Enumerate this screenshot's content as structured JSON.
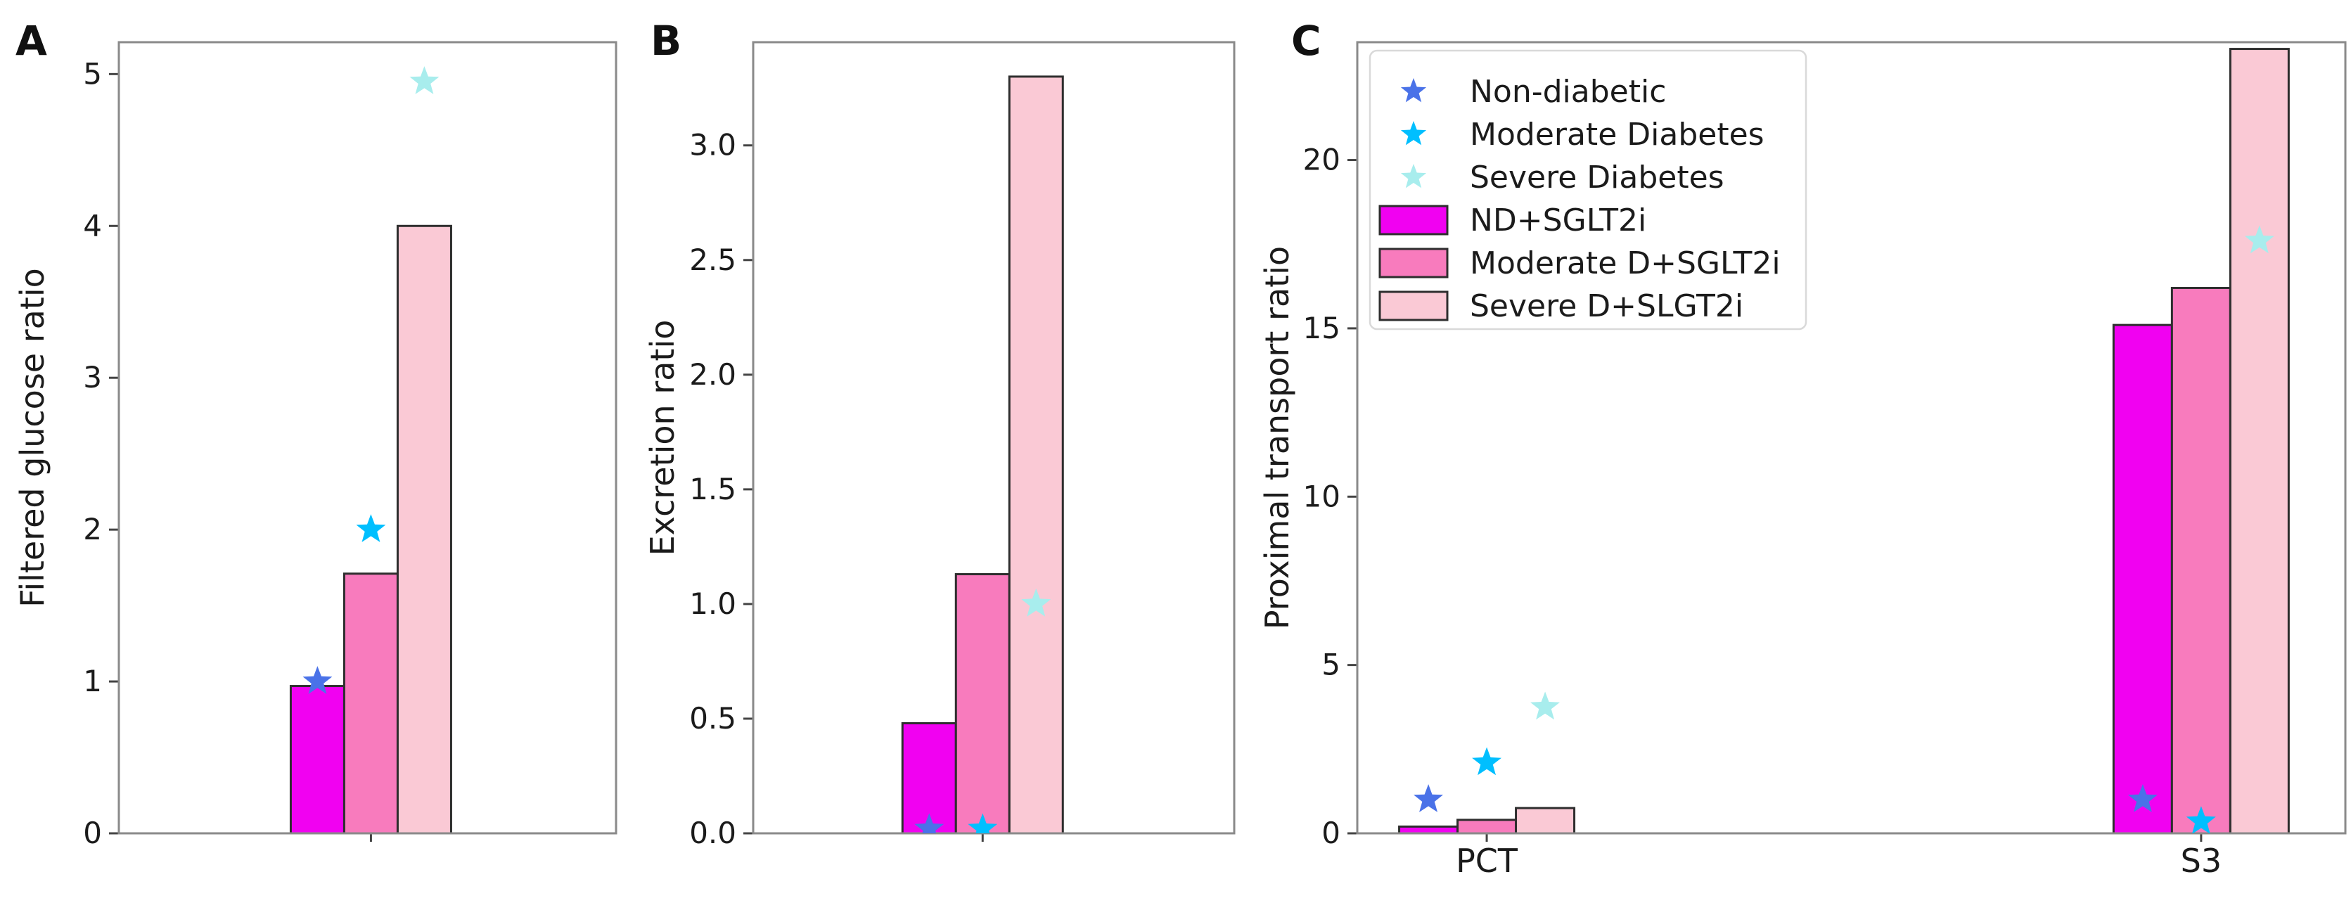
{
  "figure": {
    "background": "#ffffff",
    "colors": {
      "axis": "#8a8a8a",
      "tick": "#444444",
      "text": "#1b1b1b",
      "panel_letter": "#111111",
      "bar_edge": "#2e2e2e",
      "legend_border": "#d9d9d9",
      "legend_bg": "#ffffff"
    }
  },
  "chart_data": [
    {
      "type": "bar",
      "panel_label": "A",
      "title": "",
      "xlabel": "",
      "ylabel": "Filtered glucose ratio",
      "categories": [
        ""
      ],
      "ylim": [
        0,
        5.21
      ],
      "yticks": [
        0,
        1,
        2,
        3,
        4,
        5
      ],
      "ytick_labels": [
        "0",
        "1",
        "2",
        "3",
        "4",
        "5"
      ],
      "grid": false,
      "legend_position": "none",
      "series": [
        {
          "name": "ND+SGLT2i",
          "color": "#f101f1",
          "values": [
            0.97
          ]
        },
        {
          "name": "Moderate D+SGLT2i",
          "color": "#f87bbd",
          "values": [
            1.71
          ]
        },
        {
          "name": "Severe D+SLGT2i",
          "color": "#fac9d5",
          "values": [
            4.0
          ]
        }
      ],
      "points": [
        {
          "name": "Non-diabetic",
          "marker": "star",
          "color": "#4a72e8",
          "values": [
            1.0
          ]
        },
        {
          "name": "Moderate Diabetes",
          "marker": "star",
          "color": "#00bfff",
          "values": [
            2.0
          ]
        },
        {
          "name": "Severe Diabetes",
          "marker": "star",
          "color": "#a8eded",
          "values": [
            4.95
          ]
        }
      ]
    },
    {
      "type": "bar",
      "panel_label": "B",
      "title": "",
      "xlabel": "",
      "ylabel": "Excretion ratio",
      "categories": [
        ""
      ],
      "ylim": [
        0,
        3.45
      ],
      "yticks": [
        0.0,
        0.5,
        1.0,
        1.5,
        2.0,
        2.5,
        3.0
      ],
      "ytick_labels": [
        "0.0",
        "0.5",
        "1.0",
        "1.5",
        "2.0",
        "2.5",
        "3.0"
      ],
      "grid": false,
      "legend_position": "none",
      "series": [
        {
          "name": "ND+SGLT2i",
          "color": "#f101f1",
          "values": [
            0.48
          ]
        },
        {
          "name": "Moderate D+SGLT2i",
          "color": "#f87bbd",
          "values": [
            1.13
          ]
        },
        {
          "name": "Severe D+SLGT2i",
          "color": "#fac9d5",
          "values": [
            3.3
          ]
        }
      ],
      "points": [
        {
          "name": "Non-diabetic",
          "marker": "star",
          "color": "#4a72e8",
          "values": [
            0.02
          ]
        },
        {
          "name": "Moderate Diabetes",
          "marker": "star",
          "color": "#00bfff",
          "values": [
            0.02
          ]
        },
        {
          "name": "Severe Diabetes",
          "marker": "star",
          "color": "#a8eded",
          "values": [
            1.0
          ]
        }
      ]
    },
    {
      "type": "bar",
      "panel_label": "C",
      "title": "",
      "xlabel": "",
      "ylabel": "Proximal transport ratio",
      "categories": [
        "PCT",
        "S3"
      ],
      "ylim": [
        0,
        23.5
      ],
      "yticks": [
        0,
        5,
        10,
        15,
        20
      ],
      "ytick_labels": [
        "0",
        "5",
        "10",
        "15",
        "20"
      ],
      "grid": false,
      "legend_position": "upper-left",
      "series": [
        {
          "name": "ND+SGLT2i",
          "color": "#f101f1",
          "values": [
            0.2,
            15.1
          ]
        },
        {
          "name": "Moderate D+SGLT2i",
          "color": "#f87bbd",
          "values": [
            0.4,
            16.2
          ]
        },
        {
          "name": "Severe D+SLGT2i",
          "color": "#fac9d5",
          "values": [
            0.75,
            23.3
          ]
        }
      ],
      "points": [
        {
          "name": "Non-diabetic",
          "marker": "star",
          "color": "#4a72e8",
          "values": [
            1.0,
            1.0
          ]
        },
        {
          "name": "Moderate Diabetes",
          "marker": "star",
          "color": "#00bfff",
          "values": [
            2.1,
            0.35
          ]
        },
        {
          "name": "Severe Diabetes",
          "marker": "star",
          "color": "#a8eded",
          "values": [
            3.75,
            17.6
          ]
        }
      ],
      "legend": {
        "entries": [
          {
            "type": "star",
            "color": "#4a72e8",
            "label": "Non-diabetic"
          },
          {
            "type": "star",
            "color": "#00bfff",
            "label": "Moderate Diabetes"
          },
          {
            "type": "star",
            "color": "#a8eded",
            "label": "Severe Diabetes"
          },
          {
            "type": "bar",
            "color": "#f101f1",
            "label": "ND+SGLT2i"
          },
          {
            "type": "bar",
            "color": "#f87bbd",
            "label": "Moderate D+SGLT2i"
          },
          {
            "type": "bar",
            "color": "#fac9d5",
            "label": "Severe D+SLGT2i"
          }
        ]
      }
    }
  ]
}
